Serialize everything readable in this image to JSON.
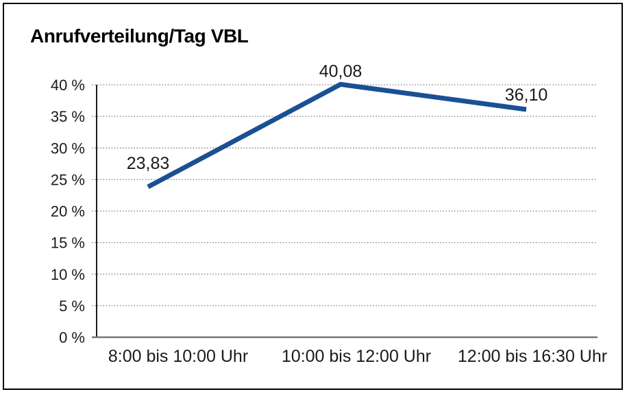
{
  "chart_data": {
    "type": "line",
    "title": "Anrufverteilung/Tag VBL",
    "categories": [
      "8:00 bis 10:00 Uhr",
      "10:00 bis 12:00 Uhr",
      "12:00 bis 16:30 Uhr"
    ],
    "values": [
      23.83,
      40.08,
      36.1
    ],
    "point_labels": [
      "23,83",
      "40,08",
      "36,10"
    ],
    "ytick_labels": [
      "0 %",
      "5 %",
      "10 %",
      "15 %",
      "20 %",
      "25 %",
      "30 %",
      "35 %",
      "40 %"
    ],
    "ytick_step": 5,
    "ylim": [
      0,
      40
    ],
    "xlabel": "",
    "ylabel": "",
    "legend": "none",
    "grid": "horizontal-dotted",
    "colors": {
      "line": "#1a5094",
      "grid": "#787878",
      "y_axis": "#1a1a1a",
      "x_axis": "#757575",
      "text": "#1a1a1a",
      "frame_border": "#000000",
      "background": "#ffffff"
    }
  }
}
